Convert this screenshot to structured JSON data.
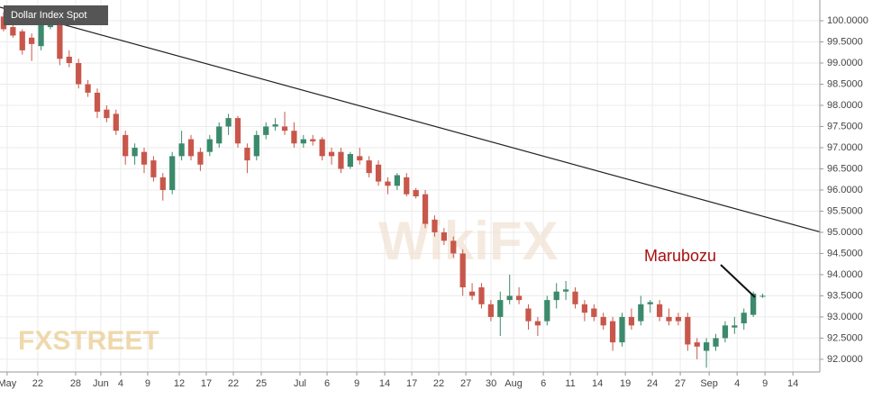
{
  "chart_data": {
    "type": "candlestick",
    "title": "Dollar Index Spot",
    "annotation": "Marubozu",
    "watermarks": [
      "FXSTREET",
      "WikiFX"
    ],
    "grid": true,
    "up_color": "#3b8a6c",
    "down_color": "#c8574b",
    "trend_color": "#222222",
    "annotation_color": "#a80f0f",
    "xlim": [
      -0.38,
      87.1
    ],
    "ylim": [
      91.7,
      100.49
    ],
    "xticks": [
      {
        "value": 0.38,
        "label": "May"
      },
      {
        "value": 3.65,
        "label": "22"
      },
      {
        "value": 7.69,
        "label": "28"
      },
      {
        "value": 10.38,
        "label": "Jun"
      },
      {
        "value": 12.5,
        "label": "4"
      },
      {
        "value": 15.38,
        "label": "9"
      },
      {
        "value": 18.75,
        "label": "12"
      },
      {
        "value": 21.63,
        "label": "17"
      },
      {
        "value": 24.52,
        "label": "22"
      },
      {
        "value": 27.5,
        "label": "25"
      },
      {
        "value": 31.63,
        "label": "Jul"
      },
      {
        "value": 34.52,
        "label": "6"
      },
      {
        "value": 37.69,
        "label": "9"
      },
      {
        "value": 40.67,
        "label": "14"
      },
      {
        "value": 43.56,
        "label": "17"
      },
      {
        "value": 46.44,
        "label": "22"
      },
      {
        "value": 49.33,
        "label": "27"
      },
      {
        "value": 52.02,
        "label": "30"
      },
      {
        "value": 54.42,
        "label": "Aug"
      },
      {
        "value": 57.6,
        "label": "6"
      },
      {
        "value": 60.48,
        "label": "11"
      },
      {
        "value": 63.37,
        "label": "14"
      },
      {
        "value": 66.35,
        "label": "19"
      },
      {
        "value": 69.23,
        "label": "24"
      },
      {
        "value": 72.21,
        "label": "27"
      },
      {
        "value": 75.29,
        "label": "Sep"
      },
      {
        "value": 78.27,
        "label": "4"
      },
      {
        "value": 81.25,
        "label": "9"
      },
      {
        "value": 84.23,
        "label": "14"
      }
    ],
    "yticks": [
      {
        "value": 92,
        "label": "92.0000"
      },
      {
        "value": 92.5,
        "label": "92.5000"
      },
      {
        "value": 93,
        "label": "93.0000"
      },
      {
        "value": 93.5,
        "label": "93.5000"
      },
      {
        "value": 94,
        "label": "94.0000"
      },
      {
        "value": 94.5,
        "label": "94.5000"
      },
      {
        "value": 95,
        "label": "95.0000"
      },
      {
        "value": 95.5,
        "label": "95.5000"
      },
      {
        "value": 96,
        "label": "96.0000"
      },
      {
        "value": 96.5,
        "label": "96.5000"
      },
      {
        "value": 97,
        "label": "97.0000"
      },
      {
        "value": 97.5,
        "label": "97.5000"
      },
      {
        "value": 98,
        "label": "98.0000"
      },
      {
        "value": 98.5,
        "label": "98.5000"
      },
      {
        "value": 99,
        "label": "99.0000"
      },
      {
        "value": 99.5,
        "label": "99.5000"
      },
      {
        "value": 100,
        "label": "100.0000"
      }
    ],
    "trendline": {
      "x": [
        -0.38,
        87.1
      ],
      "y": [
        100.32,
        95.01
      ]
    },
    "x": [
      0,
      1,
      2,
      3,
      4,
      5,
      6,
      7,
      8,
      9,
      10,
      11,
      12,
      13,
      14,
      15,
      16,
      17,
      18,
      19,
      20,
      21,
      22,
      23,
      24,
      25,
      26,
      27,
      28,
      29,
      30,
      31,
      32,
      33,
      34,
      35,
      36,
      37,
      38,
      39,
      40,
      41,
      42,
      43,
      44,
      45,
      46,
      47,
      48,
      49,
      50,
      51,
      52,
      53,
      54,
      55,
      56,
      57,
      58,
      59,
      60,
      61,
      62,
      63,
      64,
      65,
      66,
      67,
      68,
      69,
      70,
      71,
      72,
      73,
      74,
      75,
      76,
      77,
      78,
      79,
      80,
      81
    ],
    "open": [
      100.1,
      99.85,
      99.75,
      99.6,
      99.4,
      99.85,
      99.95,
      99.15,
      99.0,
      98.5,
      98.3,
      97.9,
      97.8,
      97.3,
      96.8,
      96.9,
      96.7,
      96.3,
      96.0,
      96.8,
      97.2,
      96.9,
      96.9,
      97.1,
      97.5,
      97.7,
      97.0,
      96.8,
      97.3,
      97.5,
      97.5,
      97.4,
      97.1,
      97.2,
      97.2,
      96.9,
      96.9,
      96.55,
      96.8,
      96.7,
      96.6,
      96.2,
      96.1,
      96.3,
      96.0,
      95.9,
      95.3,
      95.0,
      94.8,
      94.5,
      93.6,
      93.7,
      93.3,
      93.0,
      93.4,
      93.5,
      93.2,
      92.9,
      92.9,
      93.4,
      93.6,
      93.6,
      93.3,
      93.2,
      93.0,
      92.9,
      92.4,
      93.0,
      92.9,
      93.3,
      93.3,
      93.0,
      93.0,
      93.0,
      92.4,
      92.2,
      92.3,
      92.5,
      92.75,
      92.85,
      93.05,
      93.5
    ],
    "high": [
      100.2,
      99.95,
      99.8,
      99.7,
      100.0,
      100.05,
      100.0,
      99.3,
      99.1,
      98.6,
      98.4,
      98.0,
      97.9,
      97.4,
      97.1,
      97.0,
      96.8,
      96.4,
      96.9,
      97.4,
      97.3,
      97.0,
      97.3,
      97.6,
      97.8,
      97.75,
      97.1,
      97.4,
      97.6,
      97.7,
      97.85,
      97.6,
      97.3,
      97.3,
      97.25,
      97.0,
      97.0,
      96.9,
      97.0,
      96.8,
      96.7,
      96.3,
      96.4,
      96.4,
      96.05,
      96.0,
      95.4,
      95.1,
      94.9,
      94.6,
      93.8,
      93.8,
      93.4,
      93.6,
      94.0,
      93.7,
      93.3,
      93.0,
      93.5,
      93.8,
      93.85,
      93.7,
      93.4,
      93.3,
      93.1,
      93.0,
      93.1,
      93.2,
      93.5,
      93.4,
      93.4,
      93.2,
      93.1,
      93.1,
      92.5,
      92.5,
      92.6,
      92.9,
      93.0,
      93.2,
      93.6,
      93.55
    ],
    "low": [
      99.75,
      99.6,
      99.2,
      99.05,
      99.3,
      99.8,
      98.95,
      98.9,
      98.4,
      98.2,
      97.7,
      97.6,
      97.3,
      96.6,
      96.6,
      96.4,
      96.2,
      95.75,
      95.9,
      96.7,
      96.7,
      96.45,
      96.8,
      97.0,
      97.3,
      97.0,
      96.4,
      96.7,
      97.2,
      97.4,
      97.3,
      97.0,
      97.0,
      97.05,
      96.7,
      96.6,
      96.4,
      96.5,
      96.6,
      96.3,
      96.1,
      95.9,
      96.0,
      95.85,
      95.8,
      95.1,
      94.9,
      94.7,
      94.4,
      93.5,
      93.4,
      93.2,
      92.9,
      92.55,
      93.3,
      93.3,
      92.7,
      92.55,
      92.8,
      93.2,
      93.4,
      93.2,
      92.9,
      92.9,
      92.7,
      92.2,
      92.3,
      92.7,
      92.8,
      93.1,
      92.9,
      92.8,
      92.8,
      92.2,
      92.0,
      91.8,
      92.2,
      92.4,
      92.6,
      92.7,
      93.0,
      93.45
    ],
    "close": [
      99.8,
      99.65,
      99.3,
      99.45,
      99.9,
      99.9,
      99.1,
      99.0,
      98.5,
      98.3,
      97.85,
      97.7,
      97.4,
      96.8,
      97.0,
      96.6,
      96.3,
      96.0,
      96.8,
      97.1,
      96.8,
      96.6,
      97.2,
      97.5,
      97.7,
      97.1,
      96.7,
      97.3,
      97.5,
      97.55,
      97.4,
      97.1,
      97.2,
      97.15,
      96.8,
      96.8,
      96.5,
      96.85,
      96.7,
      96.4,
      96.2,
      96.1,
      96.35,
      95.9,
      95.85,
      95.2,
      95.0,
      94.8,
      94.5,
      93.7,
      93.5,
      93.3,
      93.0,
      93.4,
      93.5,
      93.4,
      92.9,
      92.8,
      93.4,
      93.6,
      93.65,
      93.3,
      93.1,
      93.0,
      92.8,
      92.4,
      93.0,
      92.8,
      93.3,
      93.35,
      93.0,
      92.9,
      92.9,
      92.35,
      92.3,
      92.4,
      92.5,
      92.8,
      92.8,
      93.1,
      93.55,
      93.5
    ]
  }
}
